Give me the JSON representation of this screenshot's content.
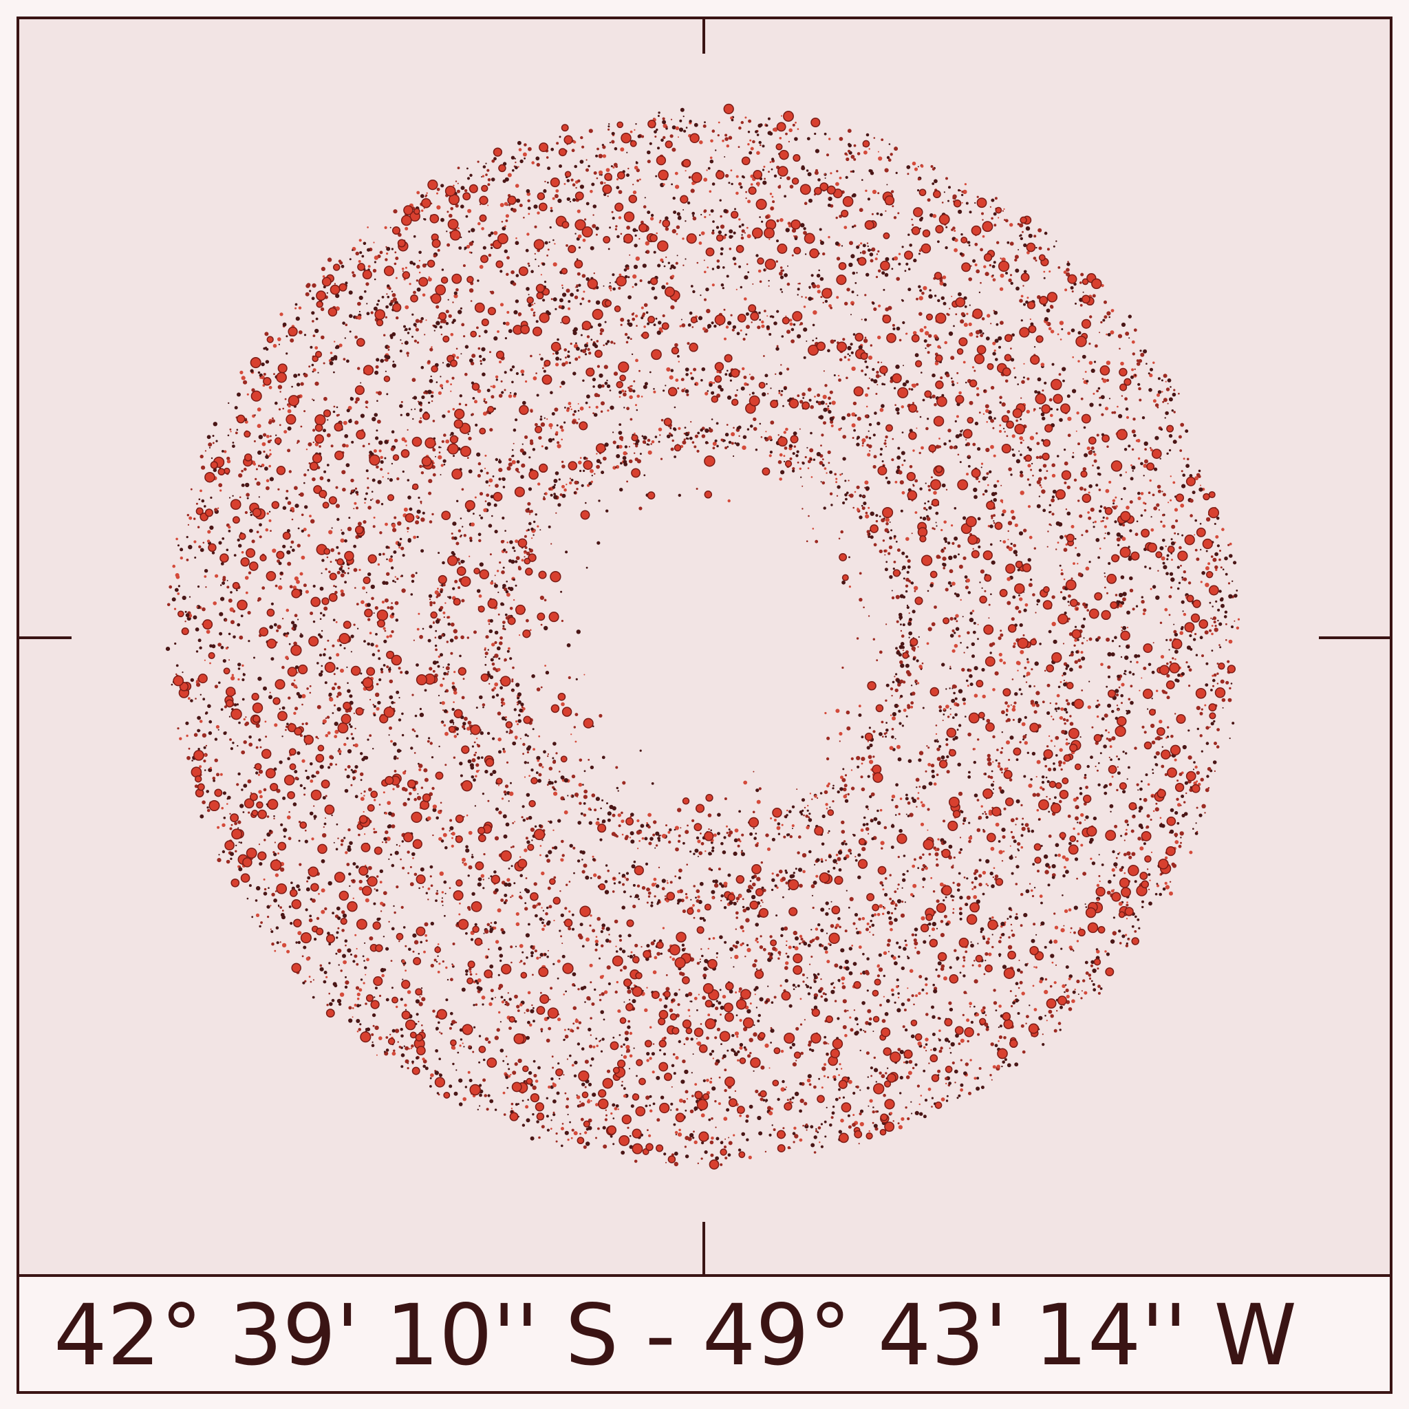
{
  "caption": "42° 39' 10'' S - 49° 43' 14'' W"
}
